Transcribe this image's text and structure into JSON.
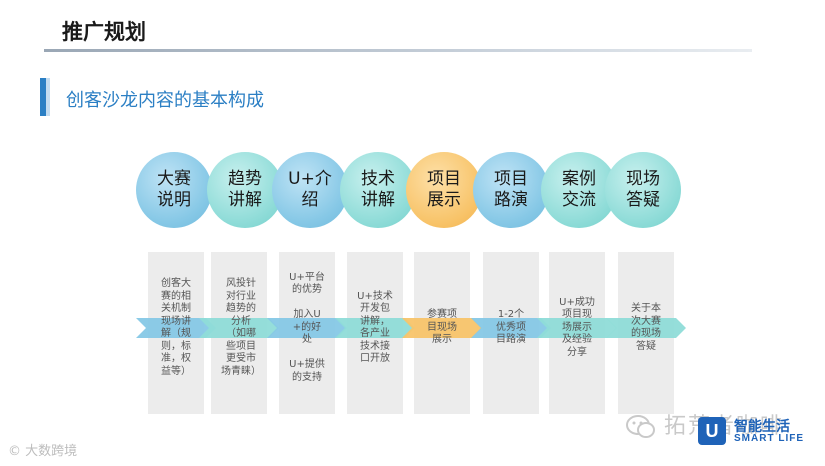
{
  "header": {
    "title": "推广规划"
  },
  "section": {
    "heading": "创客沙龙内容的基本构成"
  },
  "steps": [
    {
      "label": "大赛\n说明",
      "color": "#86c8e6",
      "detail": "创客大\n赛的相\n关机制\n现场讲\n解（规\n则，标\n准，权\n益等）"
    },
    {
      "label": "趋势\n讲解",
      "color": "#8fdcd8",
      "detail": "风投针\n对行业\n趋势的\n分析\n（如哪\n些项目\n更受市\n场青睐）"
    },
    {
      "label": "U+介\n绍",
      "color": "#86c8e6",
      "detail": "U+平台\n的优势\n\n加入U\n+的好\n处\n\nU+提供\n的支持"
    },
    {
      "label": "技术\n讲解",
      "color": "#8fdcd8",
      "detail": "U+技术\n开发包\n讲解，\n各产业\n技术接\n口开放"
    },
    {
      "label": "项目\n展示",
      "color": "#f8c46a",
      "detail": "参赛项\n目现场\n展示"
    },
    {
      "label": "项目\n路演",
      "color": "#86c8e6",
      "detail": "1-2个\n优秀项\n目路演"
    },
    {
      "label": "案例\n交流",
      "color": "#8fdcd8",
      "detail": "U+成功\n项目现\n场展示\n及经验\n分享"
    },
    {
      "label": "现场\n答疑",
      "color": "#8fdcd8",
      "detail": "关于本\n次大赛\n的现场\n答疑"
    }
  ],
  "watermarks": {
    "left": "© 大数跨境",
    "right": "拓荒者咖啡",
    "logo_cn": "智能生活",
    "logo_en": "SMART LIFE",
    "logo_letter": "U"
  }
}
